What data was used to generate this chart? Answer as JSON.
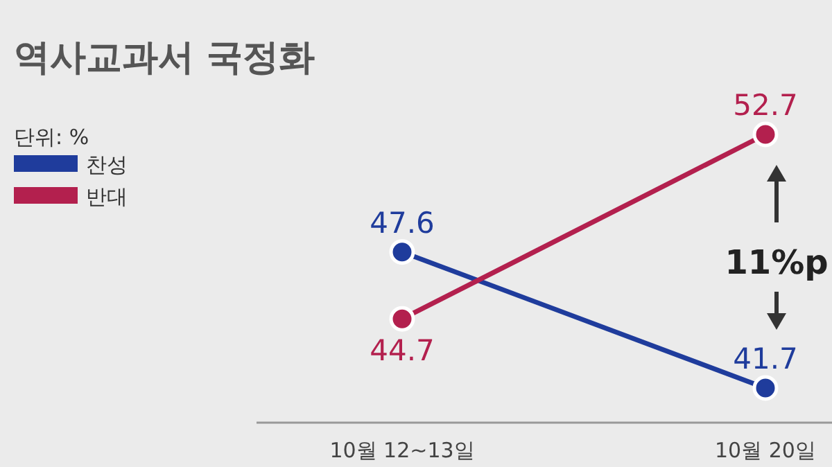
{
  "chart_data": {
    "type": "line",
    "title": "역사교과서 국정화",
    "categories": [
      "10월 12~13일",
      "10월 20일"
    ],
    "series": [
      {
        "name": "찬성",
        "color": "#1f3c9c",
        "values": [
          47.6,
          41.7
        ]
      },
      {
        "name": "반대",
        "color": "#b3204e",
        "values": [
          44.7,
          52.7
        ]
      }
    ],
    "data_labels": true,
    "marker": "circle",
    "legend": "top left",
    "annotations": [
      "단위: %",
      "11%p"
    ]
  }
}
